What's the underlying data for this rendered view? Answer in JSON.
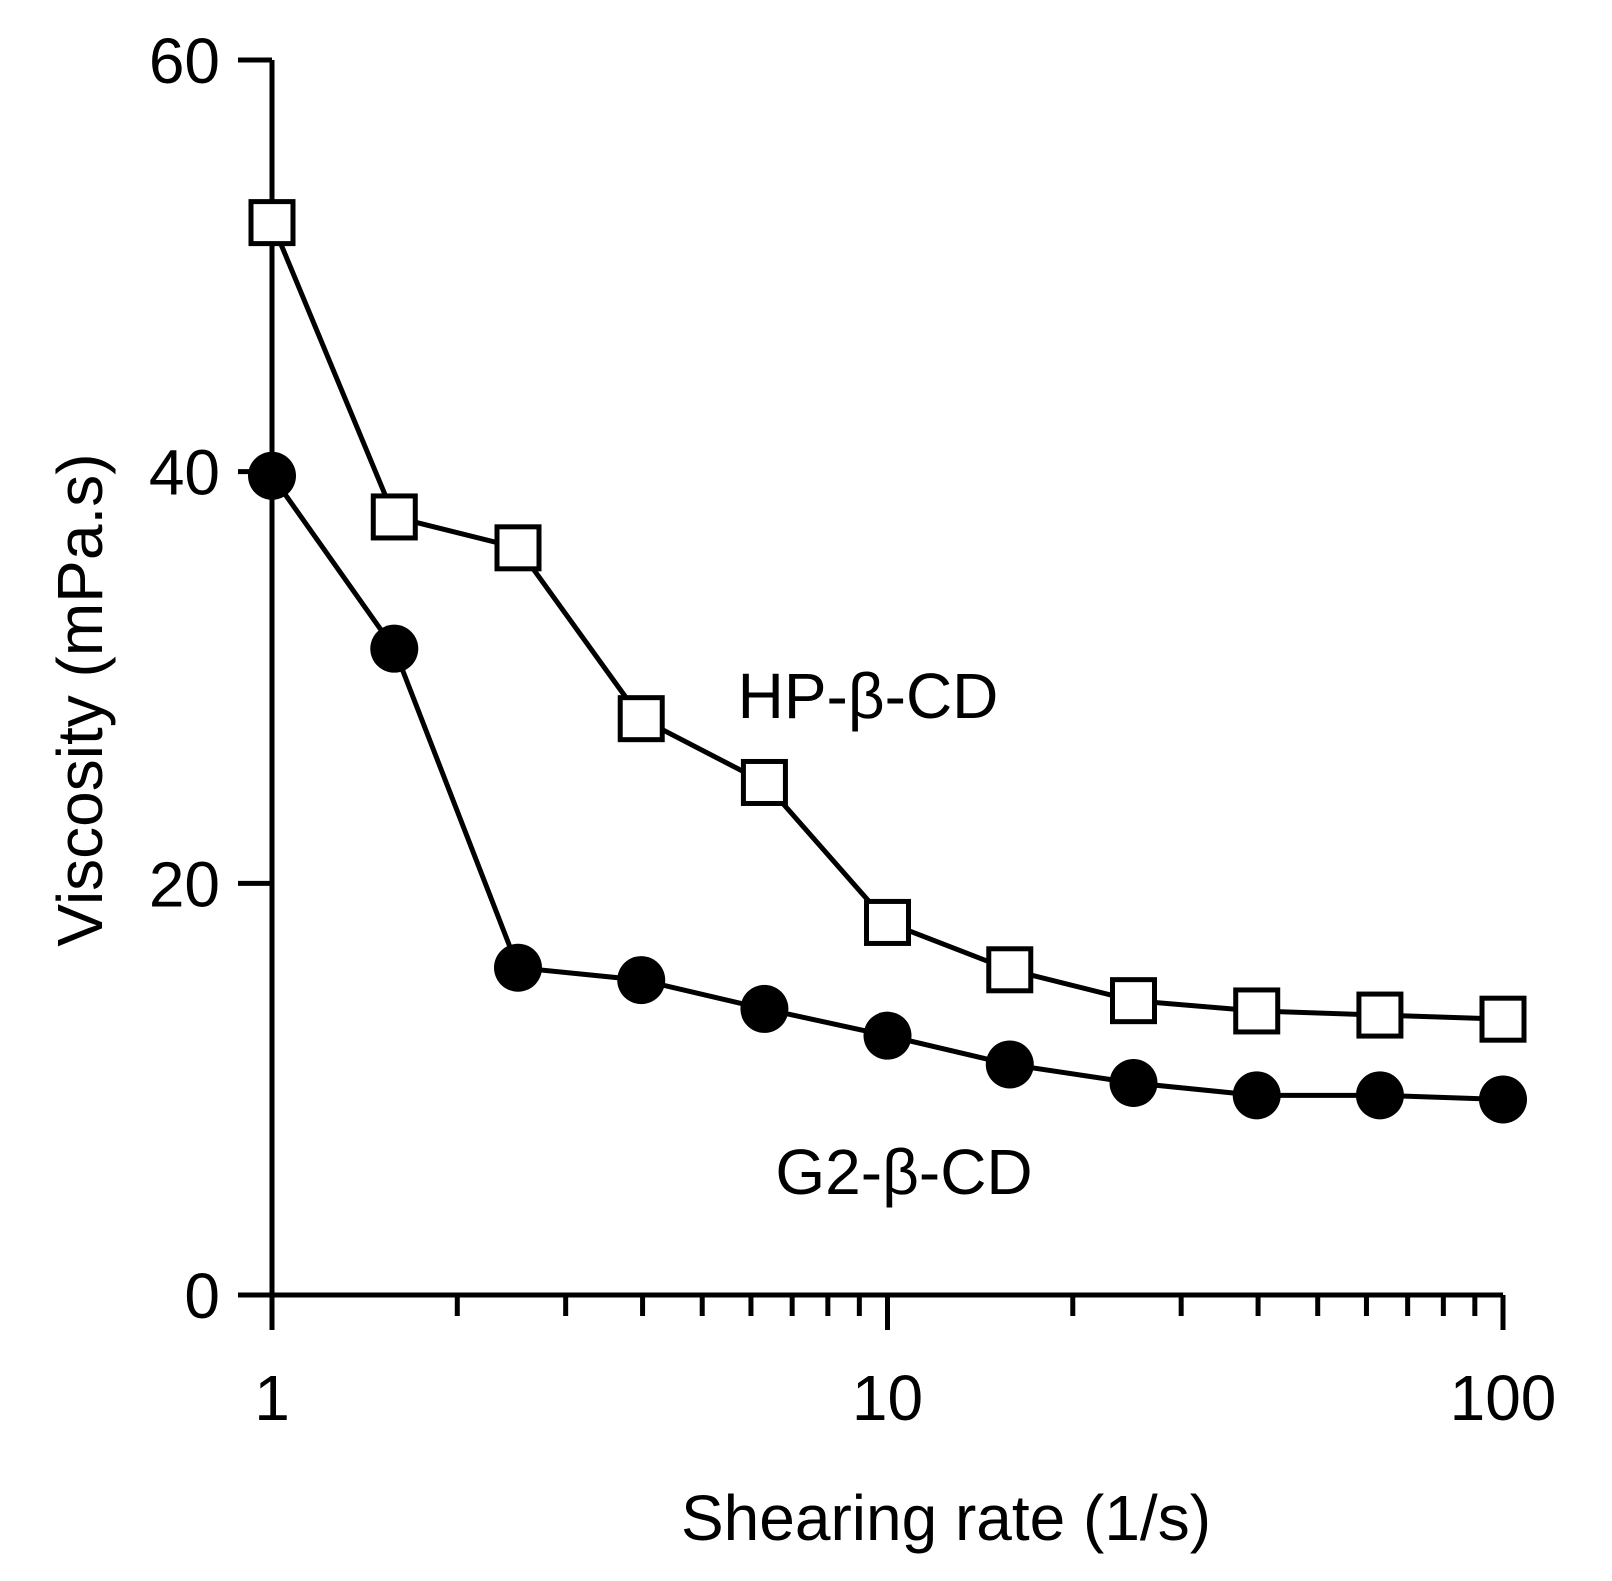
{
  "chart_data": {
    "type": "line",
    "title": "",
    "xlabel": "Shearing rate (1/s)",
    "ylabel": "Viscosity (mPa.s)",
    "xscale": "log",
    "xlim": [
      1,
      100
    ],
    "ylim": [
      0,
      60
    ],
    "x_ticks": [
      {
        "value": 1,
        "label": "1"
      },
      {
        "value": 10,
        "label": "10"
      },
      {
        "value": 100,
        "label": "100"
      }
    ],
    "y_ticks": [
      {
        "value": 0,
        "label": "0"
      },
      {
        "value": 20,
        "label": "20"
      },
      {
        "value": 40,
        "label": "40"
      },
      {
        "value": 60,
        "label": "60"
      }
    ],
    "grid": false,
    "legend": "none",
    "series": [
      {
        "name": "HP-β-CD",
        "marker": "open-square",
        "x": [
          1.0,
          1.58,
          2.51,
          3.98,
          6.31,
          10.0,
          15.8,
          25.1,
          39.8,
          63.1,
          100.0
        ],
        "values": [
          52.1,
          37.8,
          36.3,
          28.0,
          24.9,
          18.1,
          15.8,
          14.3,
          13.8,
          13.6,
          13.4
        ]
      },
      {
        "name": "G2-β-CD",
        "marker": "filled-circle",
        "x": [
          1.0,
          1.58,
          2.51,
          3.98,
          6.31,
          10.0,
          15.8,
          25.1,
          39.8,
          63.1,
          100.0
        ],
        "values": [
          39.8,
          31.4,
          15.9,
          15.3,
          13.9,
          12.6,
          11.2,
          10.3,
          9.7,
          9.7,
          9.5
        ]
      }
    ],
    "annotations": [
      {
        "text": "HP-β-CD",
        "series": "HP-β-CD"
      },
      {
        "text": "G2-β-CD",
        "series": "G2-β-CD"
      }
    ]
  },
  "colors": {
    "ink": "#000000",
    "background": "#ffffff"
  }
}
